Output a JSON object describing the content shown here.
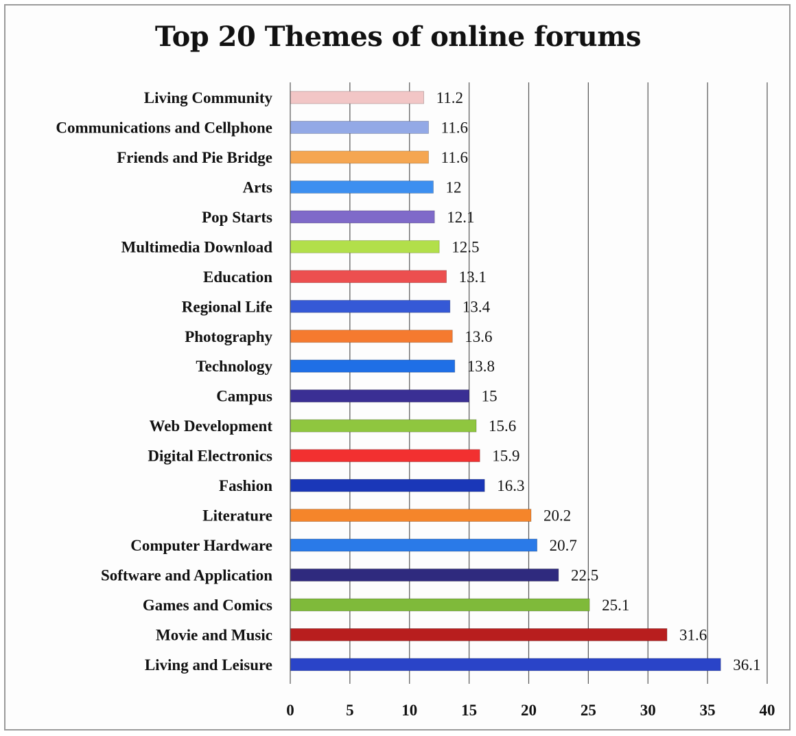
{
  "chart_data": {
    "type": "bar",
    "orientation": "horizontal",
    "title": "Top 20 Themes of online forums",
    "xlabel": "",
    "ylabel": "",
    "xlim": [
      0,
      40
    ],
    "x_ticks": [
      "0",
      "5",
      "10",
      "15",
      "20",
      "25",
      "30",
      "35",
      "40"
    ],
    "grid": "vertical major gridlines",
    "legend": "none",
    "categories": [
      "Living Community",
      "Communications and Cellphone",
      "Friends and Pie Bridge",
      "Arts",
      "Pop Starts",
      "Multimedia Download",
      "Education",
      "Regional Life",
      "Photography",
      "Technology",
      "Campus",
      "Web Development",
      "Digital Electronics",
      "Fashion",
      "Literature",
      "Computer Hardware",
      "Software and Application",
      "Games and Comics",
      "Movie and Music",
      "Living and Leisure"
    ],
    "values": [
      11.2,
      11.6,
      11.6,
      12,
      12.1,
      12.5,
      13.1,
      13.4,
      13.6,
      13.8,
      15,
      15.6,
      15.9,
      16.3,
      20.2,
      20.7,
      22.5,
      25.1,
      31.6,
      36.1
    ],
    "value_labels": [
      "11.2",
      "11.6",
      "11.6",
      "12",
      "12.1",
      "12.5",
      "13.1",
      "13.4",
      "13.6",
      "13.8",
      "15",
      "15.6",
      "15.9",
      "16.3",
      "20.2",
      "20.7",
      "22.5",
      "25.1",
      "31.6",
      "36.1"
    ],
    "bar_colors": [
      "#f2c6c6",
      "#93a9e6",
      "#f5a651",
      "#3d8ff0",
      "#7f6ac9",
      "#b2df4a",
      "#ec4f4f",
      "#3559d6",
      "#f57a2f",
      "#1f6fe6",
      "#3a2f94",
      "#8fc63f",
      "#f23030",
      "#1a37b8",
      "#f5852a",
      "#2a7ae8",
      "#2f2a7e",
      "#7fba3a",
      "#b81e1e",
      "#2a44c8"
    ]
  }
}
